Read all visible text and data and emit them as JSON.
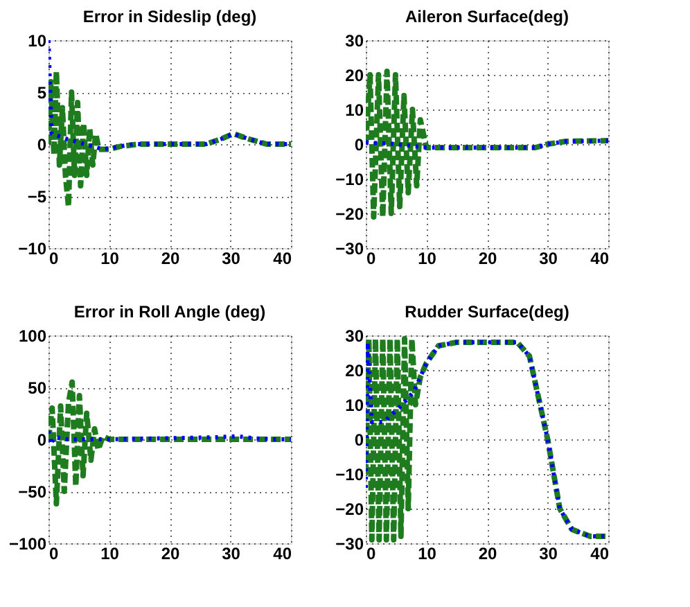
{
  "chart_data": [
    {
      "type": "line",
      "title": "Error in Sideslip (deg)",
      "xlim": [
        0,
        40
      ],
      "xticks": [
        0,
        10,
        20,
        30,
        40
      ],
      "ylim": [
        -10,
        10
      ],
      "yticks": [
        -10,
        -5,
        0,
        5,
        10
      ],
      "grid": true,
      "series": [
        {
          "color": "#1e7b1e",
          "line_style": "dashed",
          "x": [
            0,
            0.4,
            0.9,
            1.3,
            1.8,
            2.3,
            2.8,
            3.3,
            3.8,
            4.3,
            4.8,
            5.3,
            5.8,
            6.3,
            6.8,
            7.3,
            7.8,
            8.3,
            9,
            10,
            12,
            15,
            26,
            28.5,
            30.5,
            33,
            36,
            40
          ],
          "values": [
            0,
            6,
            -1,
            7,
            -2,
            3.5,
            -3,
            -6,
            5,
            -3,
            4,
            -4,
            2,
            -3,
            1.5,
            -2,
            1,
            -0.5,
            -0.5,
            -0.5,
            -0.2,
            0,
            0,
            0.5,
            1,
            0.5,
            0,
            0
          ]
        },
        {
          "color": "#0000ff",
          "line_style": "dotted",
          "x": [
            0,
            0.5,
            3,
            6,
            9,
            11,
            14,
            26,
            28.5,
            30.5,
            33,
            36,
            40
          ],
          "values": [
            10,
            1,
            0.5,
            0,
            -0.5,
            -0.3,
            0,
            0,
            0.5,
            1,
            0.5,
            0,
            0
          ]
        }
      ]
    },
    {
      "type": "line",
      "title": "Aileron Surface(deg)",
      "xlim": [
        0,
        40
      ],
      "xticks": [
        0,
        10,
        20,
        30,
        40
      ],
      "ylim": [
        -30,
        30
      ],
      "yticks": [
        -30,
        -20,
        -10,
        0,
        10,
        20,
        30
      ],
      "grid": true,
      "series": [
        {
          "color": "#1e7b1e",
          "line_style": "dashed",
          "x": [
            0,
            0.7,
            1.3,
            2.1,
            2.8,
            3.5,
            4.2,
            4.9,
            5.6,
            6.3,
            7.0,
            7.7,
            8.4,
            9,
            10,
            28,
            30,
            33,
            40
          ],
          "values": [
            0,
            20,
            -21,
            20,
            -21,
            21,
            -20,
            20,
            -18,
            14,
            -14,
            10,
            -12,
            7,
            -1,
            -1,
            0,
            0.8,
            1
          ]
        },
        {
          "color": "#0000ff",
          "line_style": "dotted",
          "x": [
            0,
            5,
            10,
            28,
            30,
            33,
            40
          ],
          "values": [
            0.5,
            0,
            -1,
            -1,
            0,
            0.8,
            1
          ]
        }
      ]
    },
    {
      "type": "line",
      "title": "Error in Roll Angle (deg)",
      "xlim": [
        0,
        40
      ],
      "xticks": [
        0,
        10,
        20,
        30,
        40
      ],
      "ylim": [
        -100,
        100
      ],
      "yticks": [
        -100,
        -50,
        0,
        50,
        100
      ],
      "grid": true,
      "series": [
        {
          "color": "#1e7b1e",
          "line_style": "dashed",
          "x": [
            0,
            0.6,
            1.3,
            2,
            2.6,
            3.3,
            3.9,
            4.5,
            5.1,
            5.7,
            6.3,
            7,
            7.6,
            8.2,
            9,
            10,
            40
          ],
          "values": [
            0,
            30,
            -62,
            32,
            -50,
            35,
            55,
            -45,
            42,
            -35,
            25,
            -20,
            10,
            -10,
            3,
            0,
            0
          ]
        },
        {
          "color": "#0000ff",
          "line_style": "dotted",
          "x": [
            0,
            0.3,
            1,
            3,
            10,
            28,
            31,
            34,
            37,
            40
          ],
          "values": [
            8,
            -5,
            2,
            0,
            0,
            2,
            3,
            1,
            0,
            0
          ]
        }
      ]
    },
    {
      "type": "line",
      "title": "Rudder Surface(deg)",
      "xlim": [
        0,
        40
      ],
      "xticks": [
        0,
        10,
        20,
        30,
        40
      ],
      "ylim": [
        -30,
        30
      ],
      "yticks": [
        -30,
        -20,
        -10,
        0,
        10,
        20,
        30
      ],
      "grid": true,
      "series": [
        {
          "color": "#1e7b1e",
          "line_style": "dashed",
          "x": [
            0,
            0.5,
            1,
            1.6,
            2.2,
            2.8,
            3.4,
            4,
            4.6,
            5.2,
            5.8,
            6.4,
            7,
            7.6,
            8.2,
            9,
            10,
            12,
            15,
            25,
            27,
            29,
            30,
            31,
            32,
            34,
            37,
            40
          ],
          "values": [
            -10,
            29,
            -29,
            29,
            -29,
            29,
            -29,
            29,
            -29,
            29,
            -28,
            29,
            -20,
            29,
            10,
            18,
            22,
            27,
            28,
            28,
            24,
            8,
            0,
            -10,
            -20,
            -26,
            -28,
            -28
          ]
        },
        {
          "color": "#0000ff",
          "line_style": "dotted",
          "x": [
            0,
            0.3,
            1,
            3,
            6,
            8,
            9,
            10,
            12,
            15,
            25,
            27,
            29,
            30,
            31,
            32,
            34,
            37,
            40
          ],
          "values": [
            -14,
            28,
            5,
            5,
            10,
            14,
            18,
            22,
            27,
            28,
            28,
            24,
            8,
            0,
            -10,
            -20,
            -26,
            -28,
            -28
          ]
        }
      ]
    }
  ]
}
